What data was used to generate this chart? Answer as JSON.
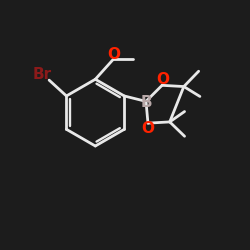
{
  "background_color": "#1c1c1c",
  "bond_color": "#e8e8e8",
  "bond_width": 2.0,
  "atom_labels": {
    "Br": {
      "color": "#8b1a1a",
      "fontsize": 11,
      "fontweight": "bold"
    },
    "O": {
      "color": "#ff2200",
      "fontsize": 11,
      "fontweight": "bold"
    },
    "B": {
      "color": "#b8a8a8",
      "fontsize": 11,
      "fontweight": "bold"
    }
  },
  "figsize": [
    2.5,
    2.5
  ],
  "dpi": 100,
  "xlim": [
    0,
    10
  ],
  "ylim": [
    0,
    10
  ]
}
